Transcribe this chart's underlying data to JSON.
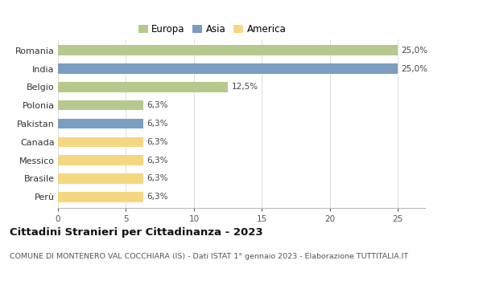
{
  "categories": [
    "Romania",
    "India",
    "Belgio",
    "Polonia",
    "Pakistan",
    "Canada",
    "Messico",
    "Brasile",
    "Perù"
  ],
  "values": [
    25.0,
    25.0,
    12.5,
    6.3,
    6.3,
    6.3,
    6.3,
    6.3,
    6.3
  ],
  "colors": [
    "#b5c98e",
    "#7b9dc0",
    "#b5c98e",
    "#b5c98e",
    "#7b9dc0",
    "#f5d782",
    "#f5d782",
    "#f5d782",
    "#f5d782"
  ],
  "labels": [
    "25,0%",
    "25,0%",
    "12,5%",
    "6,3%",
    "6,3%",
    "6,3%",
    "6,3%",
    "6,3%",
    "6,3%"
  ],
  "legend_labels": [
    "Europa",
    "Asia",
    "America"
  ],
  "legend_colors": [
    "#b5c98e",
    "#7b9dc0",
    "#f5d782"
  ],
  "title": "Cittadini Stranieri per Cittadinanza - 2023",
  "subtitle": "COMUNE DI MONTENERO VAL COCCHIARA (IS) - Dati ISTAT 1° gennaio 2023 - Elaborazione TUTTITALIA.IT",
  "xlim": [
    0,
    27
  ],
  "xticks": [
    0,
    5,
    10,
    15,
    20,
    25
  ],
  "background_color": "#ffffff",
  "grid_color": "#dddddd",
  "label_fontsize": 7.5,
  "ytick_fontsize": 8.0,
  "xtick_fontsize": 7.5,
  "title_fontsize": 9.5,
  "subtitle_fontsize": 6.8,
  "bar_height": 0.55
}
